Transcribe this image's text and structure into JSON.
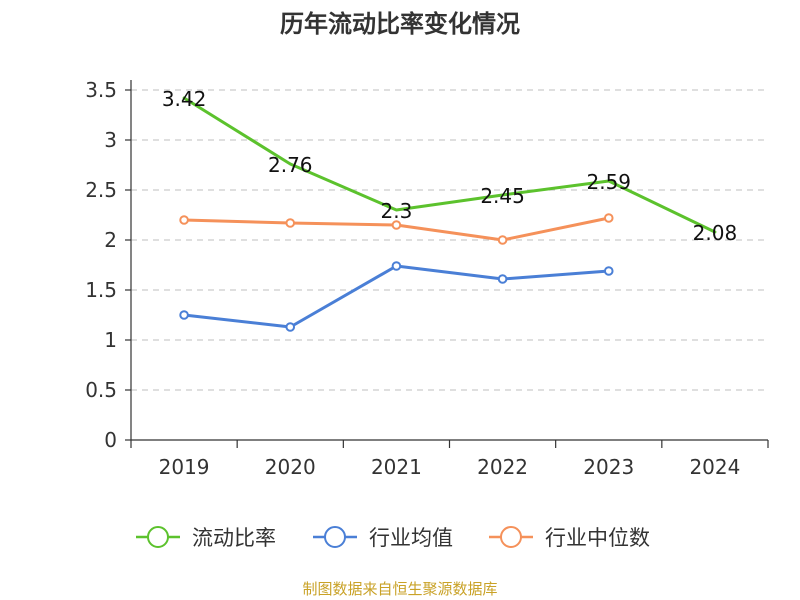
{
  "chart_data": {
    "type": "line",
    "title": "历年流动比率变化情况",
    "categories": [
      "2019",
      "2020",
      "2021",
      "2022",
      "2023",
      "2024"
    ],
    "ylim": [
      0,
      3.5
    ],
    "yticks": [
      "0",
      "0.5",
      "1",
      "1.5",
      "2",
      "2.5",
      "3",
      "3.5"
    ],
    "ytick_values": [
      0,
      0.5,
      1,
      1.5,
      2,
      2.5,
      3,
      3.5
    ],
    "grid": true,
    "legend_position": "bottom",
    "series": [
      {
        "name": "流动比率",
        "color": "#5cc22d",
        "values": [
          3.42,
          2.76,
          2.3,
          2.45,
          2.59,
          2.08
        ],
        "labels": [
          "3.42",
          "2.76",
          "2.3",
          "2.45",
          "2.59",
          "2.08"
        ],
        "markers": false
      },
      {
        "name": "行业均值",
        "color": "#4a7fd6",
        "values": [
          1.25,
          1.13,
          1.74,
          1.61,
          1.69,
          null
        ],
        "markers": true
      },
      {
        "name": "行业中位数",
        "color": "#f5915a",
        "values": [
          2.2,
          2.17,
          2.15,
          2.0,
          2.22,
          null
        ],
        "markers": true
      }
    ],
    "source": "制图数据来自恒生聚源数据库"
  }
}
